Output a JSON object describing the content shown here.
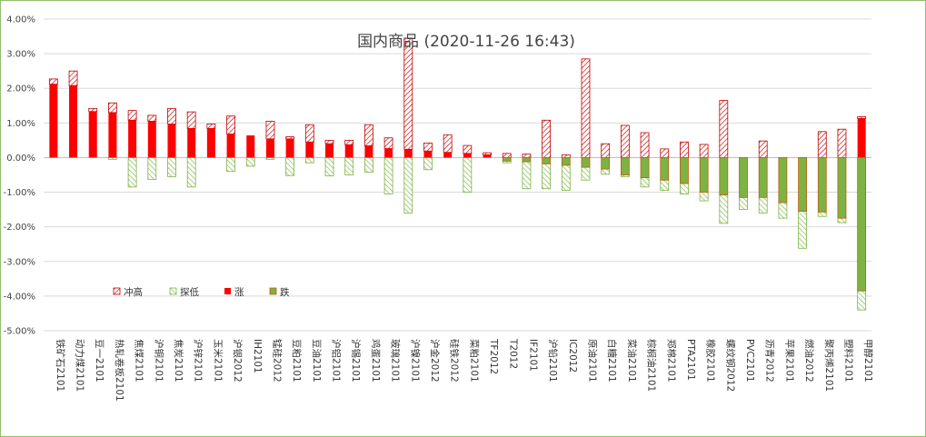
{
  "chart_data": {
    "type": "bar",
    "title": "国内商品 (2020-11-26 16:43)",
    "ylim": [
      -5,
      4
    ],
    "ytick_labels": [
      "4.00%",
      "3.00%",
      "2.00%",
      "1.00%",
      "0.00%",
      "-1.00%",
      "-2.00%",
      "-3.00%",
      "-4.00%",
      "-5.00%"
    ],
    "ytick_values": [
      4,
      3,
      2,
      1,
      0,
      -1,
      -2,
      -3,
      -4,
      -5
    ],
    "grid": true,
    "legend_position": "bottom-left",
    "categories": [
      "铁矿石2101",
      "动力煤2101",
      "豆一2101",
      "热轧卷板2101",
      "焦煤2101",
      "沪铜2101",
      "焦炭2101",
      "沪锌2101",
      "玉米2101",
      "沪银2012",
      "IH2101",
      "锰硅2012",
      "豆粕2101",
      "豆油2101",
      "沪铝2101",
      "沪锡2101",
      "鸡蛋2101",
      "玻璃2101",
      "沪镍2101",
      "沪金2012",
      "硅铁2012",
      "菜粕2101",
      "TF2012",
      "T2012",
      "IF2101",
      "沪铅2101",
      "IC2012",
      "原油2101",
      "白糖2101",
      "菜油2101",
      "棕榈油2101",
      "郑棉2101",
      "PTA2101",
      "橡胶2101",
      "螺纹钢2012",
      "PVC2101",
      "沥青2012",
      "苹果2101",
      "燃油2012",
      "聚丙烯2101",
      "塑料2101",
      "甲醇2101"
    ],
    "series": [
      {
        "name": "冲高",
        "values": [
          2.27,
          2.5,
          1.42,
          1.58,
          1.36,
          1.22,
          1.42,
          1.32,
          0.97,
          1.2,
          0.0,
          1.05,
          0.6,
          0.95,
          0.5,
          0.5,
          0.95,
          0.57,
          3.45,
          0.42,
          0.66,
          0.35,
          0.14,
          0.12,
          0.1,
          1.08,
          0.08,
          2.85,
          0.4,
          0.93,
          0.72,
          0.25,
          0.45,
          0.38,
          1.65,
          0.0,
          0.48,
          0.0,
          0.0,
          0.75,
          0.82,
          1.18
        ]
      },
      {
        "name": "探低",
        "values": [
          0.0,
          0.0,
          0.0,
          -0.05,
          -0.85,
          -0.63,
          -0.55,
          -0.85,
          0.0,
          -0.4,
          -0.25,
          -0.05,
          -0.52,
          -0.15,
          -0.53,
          -0.5,
          -0.42,
          -1.05,
          -1.6,
          -0.35,
          0.0,
          -1.0,
          0.0,
          -0.15,
          -0.9,
          -0.9,
          -0.95,
          -0.65,
          -0.48,
          -0.55,
          -0.85,
          -0.95,
          -1.05,
          -1.25,
          -1.9,
          -1.5,
          -1.6,
          -1.75,
          -2.62,
          -1.7,
          -1.88,
          -4.4
        ]
      },
      {
        "name": "涨",
        "values": [
          2.12,
          2.08,
          1.33,
          1.3,
          1.08,
          1.05,
          0.97,
          0.84,
          0.84,
          0.68,
          0.64,
          0.54,
          0.54,
          0.45,
          0.4,
          0.37,
          0.34,
          0.26,
          0.24,
          0.19,
          0.15,
          0.12,
          0.08,
          0.0,
          0.0,
          0.0,
          0.0,
          0.0,
          0.0,
          0.0,
          0.0,
          0.0,
          0.0,
          0.0,
          0.0,
          0.0,
          0.0,
          0.0,
          0.0,
          0.0,
          0.0,
          1.13
        ]
      },
      {
        "name": "跌",
        "values": [
          0.0,
          0.0,
          0.0,
          0.0,
          0.0,
          0.0,
          0.0,
          0.0,
          0.0,
          0.0,
          0.0,
          0.0,
          0.0,
          0.0,
          0.0,
          0.0,
          0.0,
          0.0,
          0.0,
          0.0,
          0.0,
          0.0,
          0.0,
          -0.1,
          -0.12,
          -0.18,
          -0.22,
          -0.28,
          -0.33,
          -0.5,
          -0.58,
          -0.65,
          -0.75,
          -1.0,
          -1.08,
          -1.15,
          -1.15,
          -1.3,
          -1.55,
          -1.57,
          -1.75,
          -3.85
        ]
      }
    ],
    "colors": {
      "up": "#ff0000",
      "down": "#7cb342",
      "hatch_up": "#c00000",
      "hatch_down": "#7cb342",
      "grid": "#d9d9d9"
    }
  }
}
